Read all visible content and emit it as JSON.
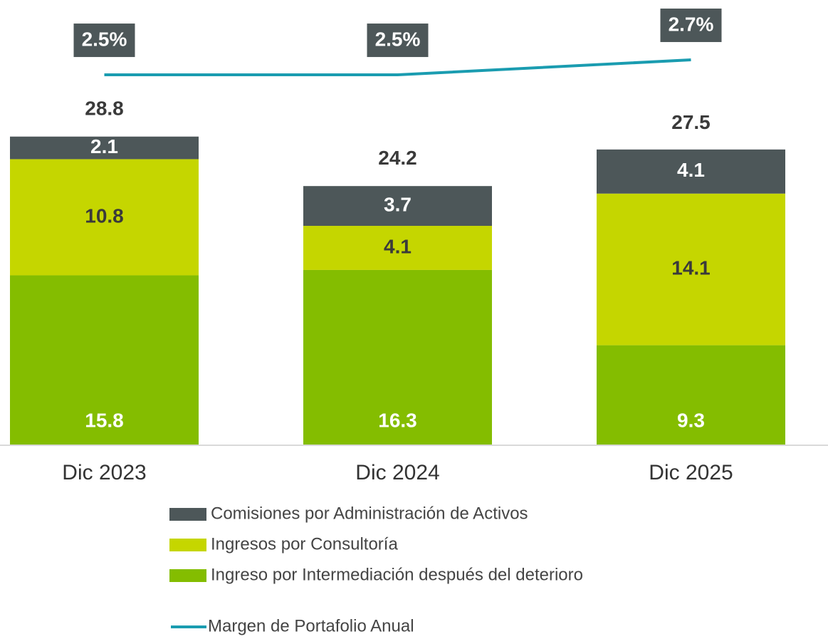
{
  "chart_data": {
    "type": "bar",
    "stacked": true,
    "categories": [
      "Dic 2023",
      "Dic 2024",
      "Dic 2025"
    ],
    "series": [
      {
        "name": "Ingreso por Intermediación después del deterioro",
        "color": "#84bd00",
        "label_color": "#ffffff",
        "values": [
          15.8,
          16.3,
          9.3
        ]
      },
      {
        "name": "Ingresos por Consultoría",
        "color": "#c5d600",
        "label_color": "#3a3a3a",
        "values": [
          10.8,
          4.1,
          14.1
        ]
      },
      {
        "name": "Comisiones por Administración de Activos",
        "color": "#4d5759",
        "label_color": "#ffffff",
        "values": [
          2.1,
          3.7,
          4.1
        ]
      },
      {
        "name": "Margen de Portafolio Anual",
        "type": "line",
        "axis": "y2",
        "color": "#1a9cb0",
        "label_box": "#4d5759",
        "values": [
          2.5,
          2.5,
          2.7
        ],
        "value_labels": [
          "2.5%",
          "2.5%",
          "2.7%"
        ]
      }
    ],
    "totals": [
      28.8,
      24.2,
      27.5
    ],
    "ylim": [
      0,
      41.4
    ],
    "y2lim": [
      -2.45,
      3.5
    ]
  }
}
